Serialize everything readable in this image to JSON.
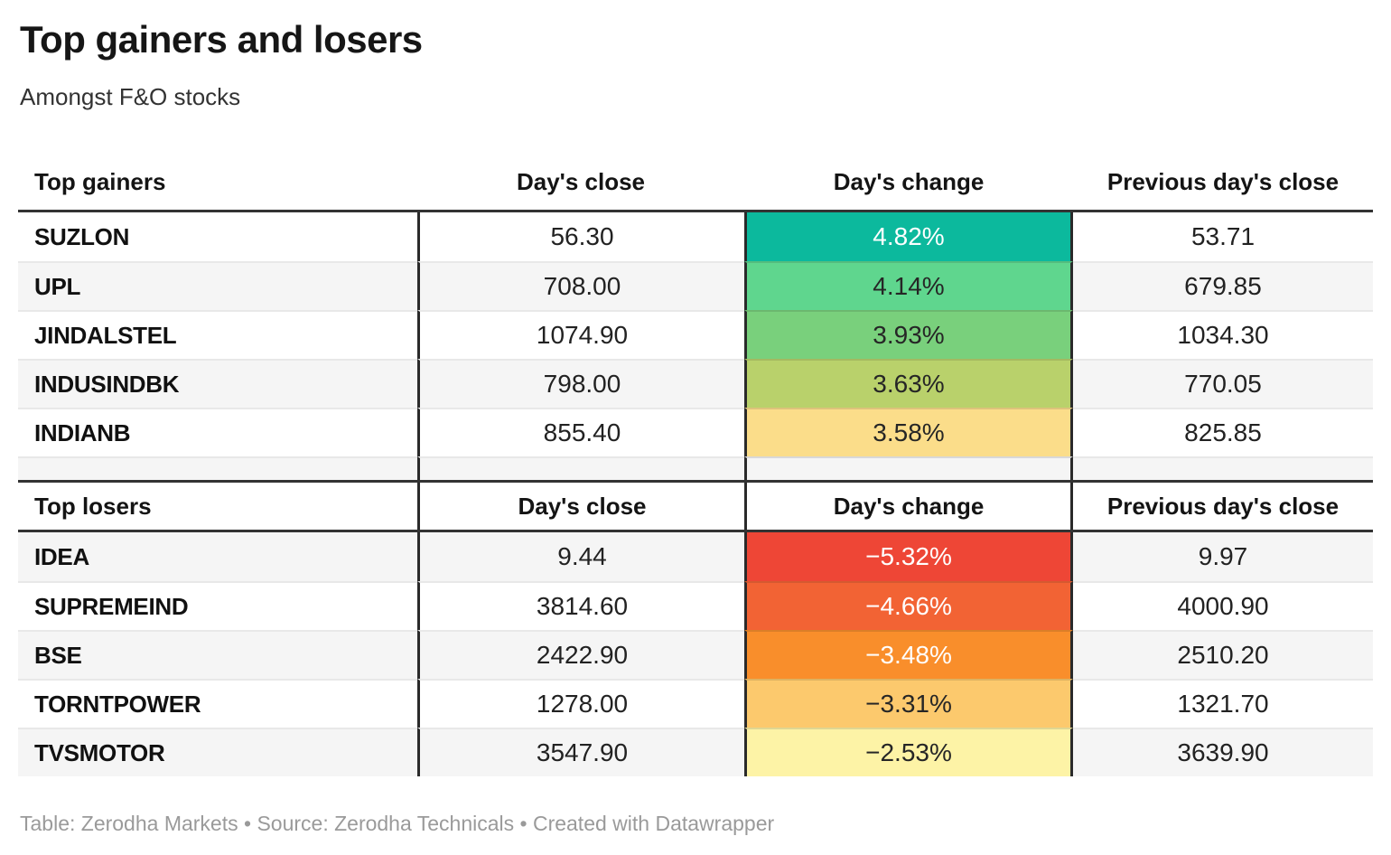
{
  "title": "Top gainers and losers",
  "subtitle": "Amongst F&O stocks",
  "footer": "Table: Zerodha Markets • Source: Zerodha Technicals • Created with Datawrapper",
  "colors": {
    "thick_rule": "#333333",
    "column_divider": "#2a2a2a",
    "row_separator": "#e8e8e8",
    "zebra_stripe": "#f5f5f5",
    "light_text": "#ffffff",
    "dark_text": "#262626"
  },
  "sections": {
    "gainers": {
      "header": {
        "name": "Top gainers",
        "close": "Day's close",
        "change": "Day's change",
        "prev": "Previous day's close"
      },
      "rows": [
        {
          "name": "SUZLON",
          "close": "56.30",
          "change": "4.82%",
          "prev": "53.71",
          "bg": "#0cb99d",
          "fg": "#ffffff"
        },
        {
          "name": "UPL",
          "close": "708.00",
          "change": "4.14%",
          "prev": "679.85",
          "bg": "#5fd68e",
          "fg": "#262626"
        },
        {
          "name": "JINDALSTEL",
          "close": "1074.90",
          "change": "3.93%",
          "prev": "1034.30",
          "bg": "#79d07c",
          "fg": "#262626"
        },
        {
          "name": "INDUSINDBK",
          "close": "798.00",
          "change": "3.63%",
          "prev": "770.05",
          "bg": "#b9d16b",
          "fg": "#262626"
        },
        {
          "name": "INDIANB",
          "close": "855.40",
          "change": "3.58%",
          "prev": "825.85",
          "bg": "#fbdd8a",
          "fg": "#262626"
        }
      ]
    },
    "losers": {
      "header": {
        "name": "Top losers",
        "close": "Day's close",
        "change": "Day's change",
        "prev": "Previous day's close"
      },
      "rows": [
        {
          "name": "IDEA",
          "close": "9.44",
          "change": "−5.32%",
          "prev": "9.97",
          "bg": "#ee4636",
          "fg": "#ffffff"
        },
        {
          "name": "SUPREMEIND",
          "close": "3814.60",
          "change": "−4.66%",
          "prev": "4000.90",
          "bg": "#f26334",
          "fg": "#ffffff"
        },
        {
          "name": "BSE",
          "close": "2422.90",
          "change": "−3.48%",
          "prev": "2510.20",
          "bg": "#f98e2b",
          "fg": "#ffffff"
        },
        {
          "name": "TORNTPOWER",
          "close": "1278.00",
          "change": "−3.31%",
          "prev": "1321.70",
          "bg": "#fcc96d",
          "fg": "#262626"
        },
        {
          "name": "TVSMOTOR",
          "close": "3547.90",
          "change": "−2.53%",
          "prev": "3639.90",
          "bg": "#fdf3a6",
          "fg": "#262626"
        }
      ]
    }
  },
  "chart_data": [
    {
      "type": "table",
      "title": "Top gainers",
      "columns": [
        "Top gainers",
        "Day's close",
        "Day's change",
        "Previous day's close"
      ],
      "rows": [
        [
          "SUZLON",
          56.3,
          4.82,
          53.71
        ],
        [
          "UPL",
          708.0,
          4.14,
          679.85
        ],
        [
          "JINDALSTEL",
          1074.9,
          3.93,
          1034.3
        ],
        [
          "INDUSINDBK",
          798.0,
          3.63,
          770.05
        ],
        [
          "INDIANB",
          855.4,
          3.58,
          825.85
        ]
      ],
      "change_unit": "%",
      "heatmap_column": "Day's change"
    },
    {
      "type": "table",
      "title": "Top losers",
      "columns": [
        "Top losers",
        "Day's close",
        "Day's change",
        "Previous day's close"
      ],
      "rows": [
        [
          "IDEA",
          9.44,
          -5.32,
          9.97
        ],
        [
          "SUPREMEIND",
          3814.6,
          -4.66,
          4000.9
        ],
        [
          "BSE",
          2422.9,
          -3.48,
          2510.2
        ],
        [
          "TORNTPOWER",
          1278.0,
          -3.31,
          1321.7
        ],
        [
          "TVSMOTOR",
          3547.9,
          -2.53,
          3639.9
        ]
      ],
      "change_unit": "%",
      "heatmap_column": "Day's change"
    }
  ]
}
